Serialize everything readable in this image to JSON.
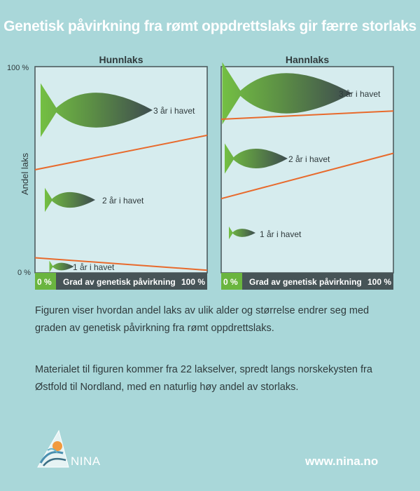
{
  "title": "Genetisk påvirkning fra rømt oppdrettslaks gir færre storlaks",
  "chart_data": {
    "type": "line",
    "ylabel": "Andel laks",
    "yticks": [
      "100 %",
      "0 %"
    ],
    "ylim": [
      0,
      100
    ],
    "xlim": [
      0,
      100
    ],
    "xlabel": "Grad av genetisk påvirkning",
    "xticks": [
      "0 %",
      "100 %"
    ],
    "colors": {
      "line": "#e86a2c",
      "panel": "#d6ecee",
      "axis_bar": "#475457",
      "green": "#6ab53f",
      "fish_dark": "#3e4c4f"
    },
    "panels": [
      {
        "title": "Hunnlaks",
        "boundaries": [
          {
            "x": [
              0,
              100
            ],
            "y": [
              7.3,
              1.3
            ]
          },
          {
            "x": [
              0,
              100
            ],
            "y": [
              50,
              66.7
            ]
          }
        ],
        "classes": [
          {
            "label": "1 år i havet",
            "size": "small"
          },
          {
            "label": "2 år i havet",
            "size": "medium"
          },
          {
            "label": "3 år i havet",
            "size": "large"
          }
        ]
      },
      {
        "title": "Hannlaks",
        "boundaries": [
          {
            "x": [
              0,
              100
            ],
            "y": [
              36,
              58
            ]
          },
          {
            "x": [
              0,
              100
            ],
            "y": [
              74.5,
              78.5
            ]
          }
        ],
        "classes": [
          {
            "label": "1 år i havet",
            "size": "small"
          },
          {
            "label": "2 år i havet",
            "size": "medium"
          },
          {
            "label": "3 år i havet",
            "size": "large"
          }
        ]
      }
    ]
  },
  "paragraphs": [
    "Figuren viser hvordan andel laks av ulik alder og størrelse endrer seg med graden av genetisk påvirkning fra rømt oppdrettslaks.",
    "Materialet til figuren kommer fra 22 lakselver, spredt langs norskekysten fra Østfold til Nordland, med en naturlig høy andel av storlaks."
  ],
  "logo_text": "NINA",
  "website": "www.nina.no"
}
